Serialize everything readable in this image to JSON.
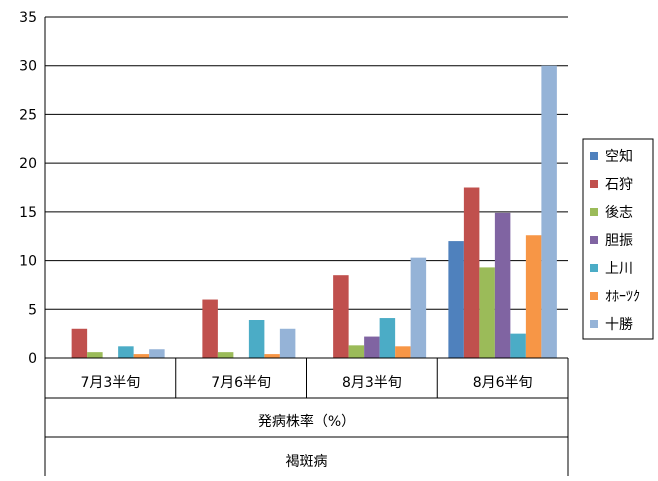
{
  "chart_data": {
    "type": "bar",
    "categories": [
      "7月3半旬",
      "7月6半旬",
      "8月3半旬",
      "8月6半旬"
    ],
    "category_group_labels": [
      "発病株率（%）",
      "褐斑病"
    ],
    "yticks": [
      "0",
      "5",
      "10",
      "15",
      "20",
      "25",
      "30",
      "35"
    ],
    "ylim": [
      0,
      35
    ],
    "grid": true,
    "legend_position": "right",
    "series": [
      {
        "name": "空知",
        "color": "#4F81BD",
        "values": [
          0,
          0,
          0,
          12.0
        ]
      },
      {
        "name": "石狩",
        "color": "#C0504D",
        "values": [
          3.0,
          6.0,
          8.5,
          17.5
        ]
      },
      {
        "name": "後志",
        "color": "#9BBB59",
        "values": [
          0.6,
          0.6,
          1.3,
          9.3
        ]
      },
      {
        "name": "胆振",
        "color": "#8064A2",
        "values": [
          0,
          0,
          2.2,
          14.9
        ]
      },
      {
        "name": "上川",
        "color": "#4BACC6",
        "values": [
          1.2,
          3.9,
          4.1,
          2.5
        ]
      },
      {
        "name": "ｵﾎｰﾂｸ",
        "color": "#F79646",
        "values": [
          0.4,
          0.4,
          1.2,
          12.6
        ]
      },
      {
        "name": "十勝",
        "color": "#95B3D7",
        "values": [
          0.9,
          3.0,
          10.3,
          30.0
        ]
      }
    ]
  }
}
